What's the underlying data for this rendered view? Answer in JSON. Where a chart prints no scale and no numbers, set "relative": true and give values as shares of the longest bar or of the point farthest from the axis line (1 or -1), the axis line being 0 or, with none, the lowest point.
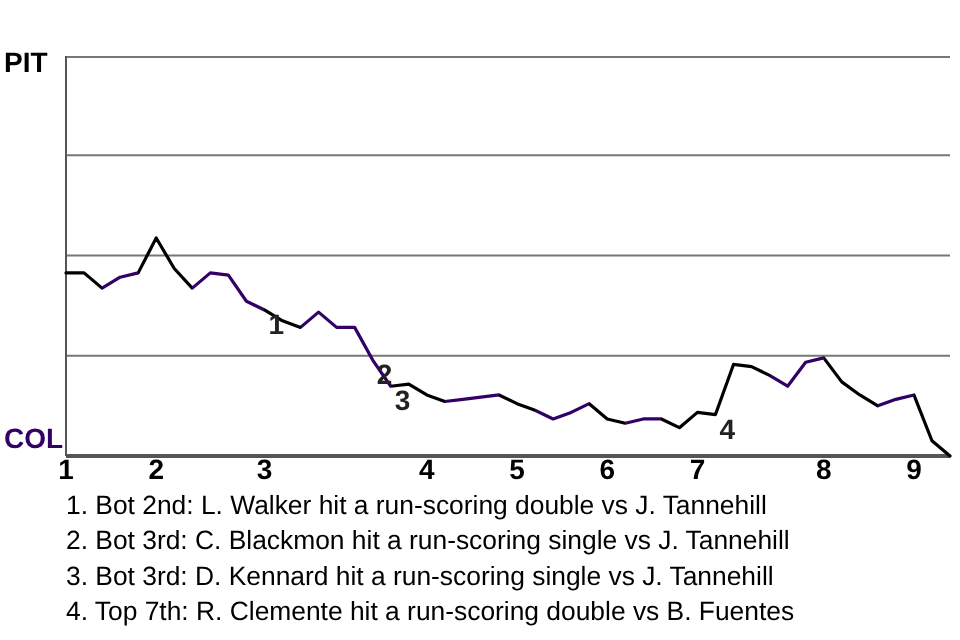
{
  "chart_data": {
    "type": "line",
    "relative": true,
    "categories": [
      "1",
      null,
      null,
      null,
      null,
      "2",
      null,
      null,
      null,
      null,
      null,
      "3",
      null,
      null,
      null,
      null,
      null,
      null,
      null,
      null,
      "4",
      null,
      null,
      null,
      null,
      "5",
      null,
      null,
      null,
      null,
      "6",
      null,
      null,
      null,
      null,
      "7",
      null,
      null,
      null,
      null,
      null,
      null,
      "8",
      null,
      null,
      null,
      null,
      "9",
      null,
      null
    ],
    "series": [
      {
        "color": "#000000",
        "values": [
          0.84,
          0.84,
          0.77,
          0.82,
          0.84,
          1,
          0.86,
          0.77,
          0.84,
          0.83,
          0.71,
          0.67,
          0.62,
          0.59,
          0.66,
          0.59,
          0.59,
          0.44,
          0.32,
          0.33,
          0.28,
          0.25,
          0.26,
          0.27,
          0.28,
          0.24,
          0.21,
          0.17,
          0.2,
          0.24,
          0.17,
          0.15,
          0.17,
          0.17,
          0.13,
          0.2,
          0.19,
          0.42,
          0.41,
          0.37,
          0.32,
          0.43,
          0.45,
          0.34,
          0.28,
          0.23,
          0.26,
          0.28,
          0.07,
          0
        ],
        "colors": [
          "#000000",
          "#000000",
          "#330066",
          "#330066",
          "#000000",
          "#000000",
          "#000000",
          "#330066",
          "#330066",
          "#330066",
          "#330066",
          "#000000",
          "#000000",
          "#330066",
          "#330066",
          "#330066",
          "#330066",
          "#330066",
          "#000000",
          "#000000",
          "#000000",
          "#330066",
          "#330066",
          "#330066",
          "#000000",
          "#000000",
          "#330066",
          "#330066",
          "#330066",
          "#000000",
          "#000000",
          "#330066",
          "#330066",
          "#000000",
          "#000000",
          "#000000",
          "#000000",
          "#000000",
          "#000000",
          "#330066",
          "#330066",
          "#330066",
          "#000000",
          "#000000",
          "#000000",
          "#330066",
          "#330066",
          "#000000",
          "#000000",
          "#000000"
        ]
      }
    ],
    "line_style": "solid",
    "ref_lines": [
      {
        "axis": "y",
        "value": 0.46,
        "color": "#777777"
      },
      {
        "axis": "y",
        "value": 0.92,
        "color": "#777777"
      },
      {
        "axis": "y",
        "value": 1.38,
        "color": "#777777"
      },
      {
        "axis": "y",
        "value": 1.83,
        "color": "#777777"
      }
    ],
    "annotations": [
      {
        "text": "PIT"
      },
      {
        "text": "COL"
      },
      {
        "text": "1",
        "y": 0.67
      },
      {
        "text": "2",
        "y": 0.44
      },
      {
        "text": "3",
        "y": 0.32
      },
      {
        "text": "4",
        "y": 0.19
      },
      "1. Bot 2nd: L. Walker hit a run-scoring double vs J. Tannehill",
      "2. Bot 3rd: C. Blackmon hit a run-scoring single vs J. Tannehill",
      "3. Bot 3rd: D. Kennard hit a run-scoring single vs J. Tannehill",
      "4. Top 7th: R. Clemente hit a run-scoring double vs B. Fuentes"
    ]
  }
}
